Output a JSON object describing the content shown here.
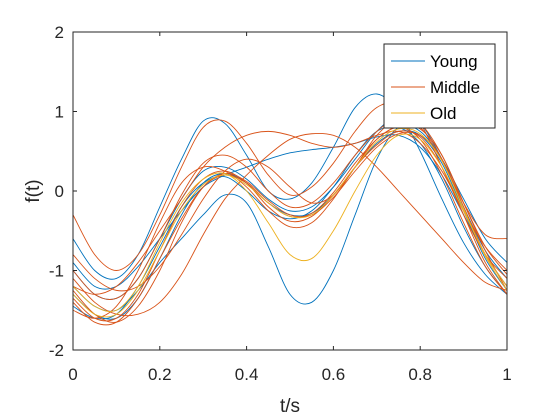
{
  "chart_data": {
    "type": "line",
    "title": "",
    "xlabel": "t/s",
    "ylabel": "f(t)",
    "xlim": [
      0,
      1
    ],
    "ylim": [
      -2,
      2
    ],
    "xticks": [
      "0",
      "0.2",
      "0.4",
      "0.6",
      "0.8",
      "1"
    ],
    "yticks": [
      "2",
      "1",
      "0",
      "-1",
      "-2"
    ],
    "grid": false,
    "legend_position": "top-right",
    "x": [
      0,
      0.05,
      0.1,
      0.15,
      0.2,
      0.25,
      0.3,
      0.35,
      0.4,
      0.45,
      0.5,
      0.55,
      0.6,
      0.65,
      0.7,
      0.75,
      0.8,
      0.85,
      0.9,
      0.95,
      1
    ],
    "series": [
      {
        "name": "Young",
        "color": "#0072BD",
        "curves": [
          [
            -1.3,
            -1.55,
            -1.6,
            -1.35,
            -0.85,
            -0.3,
            0.1,
            0.22,
            0.1,
            -0.15,
            -0.3,
            -0.28,
            -0.05,
            0.3,
            0.6,
            0.75,
            0.7,
            0.35,
            -0.25,
            -0.85,
            -1.25
          ],
          [
            -0.6,
            -1.0,
            -1.1,
            -0.8,
            -0.2,
            0.4,
            0.88,
            0.85,
            0.45,
            0.0,
            -0.1,
            0.1,
            0.55,
            1.05,
            1.22,
            1.0,
            0.5,
            -0.1,
            -0.65,
            -1.05,
            -1.3
          ],
          [
            -1.2,
            -1.45,
            -1.5,
            -1.25,
            -0.9,
            -0.6,
            -0.3,
            -0.05,
            -0.15,
            -0.7,
            -1.3,
            -1.4,
            -1.0,
            -0.3,
            0.4,
            0.8,
            0.75,
            0.4,
            -0.1,
            -0.6,
            -0.9
          ],
          [
            -0.9,
            -1.2,
            -1.2,
            -0.95,
            -0.6,
            -0.25,
            0.05,
            0.2,
            0.3,
            0.4,
            0.48,
            0.52,
            0.55,
            0.6,
            0.68,
            0.7,
            0.55,
            0.2,
            -0.3,
            -0.8,
            -1.2
          ],
          [
            -1.45,
            -1.6,
            -1.55,
            -1.2,
            -0.7,
            -0.2,
            0.1,
            0.18,
            0.0,
            -0.25,
            -0.35,
            -0.25,
            0.05,
            0.45,
            0.75,
            0.8,
            0.6,
            0.15,
            -0.45,
            -0.95,
            -1.3
          ],
          [
            -1.0,
            -1.3,
            -1.35,
            -1.1,
            -0.6,
            -0.1,
            0.25,
            0.3,
            0.15,
            -0.1,
            -0.25,
            -0.2,
            0.05,
            0.4,
            0.75,
            0.95,
            0.85,
            0.4,
            -0.2,
            -0.75,
            -1.1
          ]
        ]
      },
      {
        "name": "Middle",
        "color": "#D95319",
        "curves": [
          [
            -1.25,
            -1.55,
            -1.65,
            -1.45,
            -1.0,
            -0.4,
            0.05,
            0.22,
            0.12,
            -0.12,
            -0.3,
            -0.3,
            -0.08,
            0.25,
            0.55,
            0.72,
            0.7,
            0.4,
            -0.2,
            -0.8,
            -1.2
          ],
          [
            -1.35,
            -1.6,
            -1.6,
            -1.3,
            -0.75,
            -0.2,
            0.15,
            0.25,
            0.1,
            -0.2,
            -0.38,
            -0.32,
            -0.05,
            0.3,
            0.58,
            0.75,
            0.68,
            0.3,
            -0.3,
            -0.9,
            -1.3
          ],
          [
            -0.3,
            -0.8,
            -1.0,
            -0.8,
            -0.3,
            0.3,
            0.8,
            0.88,
            0.6,
            0.2,
            -0.05,
            0.05,
            0.35,
            0.75,
            1.05,
            1.1,
            0.85,
            0.3,
            -0.3,
            -0.8,
            -1.1
          ],
          [
            -1.5,
            -1.6,
            -1.45,
            -1.0,
            -0.4,
            0.1,
            0.3,
            0.25,
            0.05,
            -0.25,
            -0.45,
            -0.4,
            -0.1,
            0.3,
            0.65,
            0.8,
            0.65,
            0.2,
            -0.4,
            -0.95,
            -1.3
          ],
          [
            -1.1,
            -1.4,
            -1.55,
            -1.55,
            -1.4,
            -1.05,
            -0.55,
            -0.1,
            0.2,
            0.45,
            0.65,
            0.72,
            0.7,
            0.55,
            0.3,
            0.0,
            -0.3,
            -0.6,
            -0.9,
            -1.15,
            -1.25
          ],
          [
            -1.2,
            -1.3,
            -1.2,
            -0.9,
            -0.5,
            -0.1,
            0.3,
            0.55,
            0.7,
            0.75,
            0.7,
            0.6,
            0.55,
            0.6,
            0.7,
            0.75,
            0.6,
            0.25,
            -0.25,
            -0.7,
            -1.0
          ],
          [
            -0.8,
            -1.1,
            -1.25,
            -1.2,
            -0.95,
            -0.55,
            -0.1,
            0.25,
            0.4,
            0.3,
            0.05,
            -0.15,
            -0.05,
            0.3,
            0.7,
            0.9,
            0.8,
            0.4,
            -0.15,
            -0.55,
            -0.6
          ],
          [
            -1.4,
            -1.65,
            -1.65,
            -1.35,
            -0.85,
            -0.35,
            0.05,
            0.2,
            0.1,
            -0.15,
            -0.32,
            -0.28,
            -0.02,
            0.35,
            0.65,
            0.82,
            0.78,
            0.45,
            -0.15,
            -0.75,
            -1.25
          ],
          [
            -1.0,
            -1.3,
            -1.35,
            -1.1,
            -0.6,
            -0.05,
            0.35,
            0.45,
            0.3,
            0.0,
            -0.2,
            -0.15,
            0.1,
            0.45,
            0.75,
            0.92,
            0.85,
            0.45,
            -0.15,
            -0.7,
            -1.05
          ]
        ]
      },
      {
        "name": "Old",
        "color": "#EDB120",
        "curves": [
          [
            -1.3,
            -1.55,
            -1.55,
            -1.25,
            -0.75,
            -0.25,
            0.08,
            0.2,
            0.08,
            -0.15,
            -0.32,
            -0.3,
            -0.05,
            0.3,
            0.62,
            0.78,
            0.72,
            0.38,
            -0.22,
            -0.82,
            -1.25
          ],
          [
            -1.2,
            -1.45,
            -1.5,
            -1.2,
            -0.65,
            -0.15,
            0.15,
            0.22,
            0.0,
            -0.4,
            -0.8,
            -0.85,
            -0.5,
            0.0,
            0.45,
            0.7,
            0.65,
            0.3,
            -0.25,
            -0.8,
            -1.2
          ]
        ]
      }
    ]
  },
  "legend": {
    "items": [
      {
        "label": "Young",
        "color": "#0072BD"
      },
      {
        "label": "Middle",
        "color": "#D95319"
      },
      {
        "label": "Old",
        "color": "#EDB120"
      }
    ]
  }
}
